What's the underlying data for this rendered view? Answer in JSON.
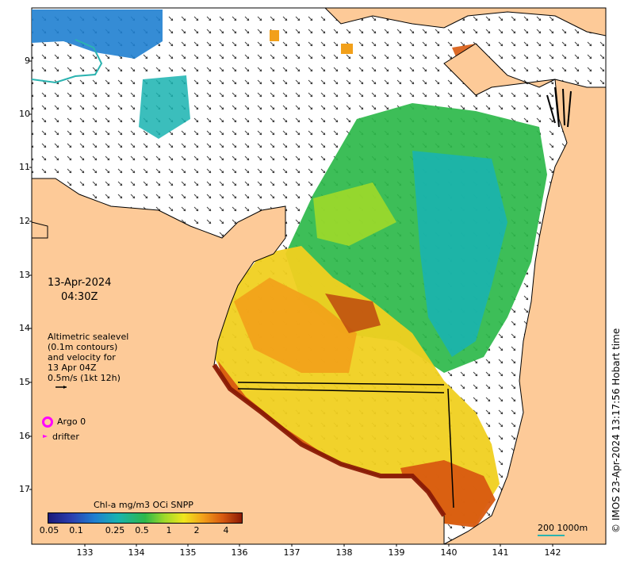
{
  "map": {
    "y_ticks": [
      "9",
      "10",
      "11",
      "12",
      "13",
      "14",
      "15",
      "16",
      "17"
    ],
    "x_ticks": [
      "133",
      "134",
      "135",
      "136",
      "137",
      "138",
      "139",
      "140",
      "141",
      "142"
    ],
    "date": "13-Apr-2024",
    "time": "04:30Z",
    "altimetry": {
      "line1": "Altimetric sealevel",
      "line2": "(0.1m contours)",
      "line3": "and velocity for",
      "line4": "13 Apr 04Z",
      "line5": "0.5m/s (1kt 12h)"
    },
    "legend": {
      "argo_label": "Argo 0",
      "drifter_label": "drifter",
      "argo_color": "#ff00ff",
      "drifter_color": "#ff00ff"
    },
    "colorbar": {
      "title": "Chl-a mg/m3 OCi SNPP",
      "ticks": [
        "0.05",
        "0.1",
        "0.25",
        "0.5",
        "1",
        "2",
        "4"
      ]
    },
    "scale": {
      "label": "200  1000m",
      "color": "#2ab3b0"
    },
    "credit": "© IMOS 23-Apr-2024 13:17:56 Hobart time",
    "colors": {
      "land": "#fdca98",
      "ocean": "#ffffff",
      "chl_low": "#1f7fd0",
      "chl_mid": "#2db84a",
      "chl_high": "#8b1a05"
    }
  }
}
